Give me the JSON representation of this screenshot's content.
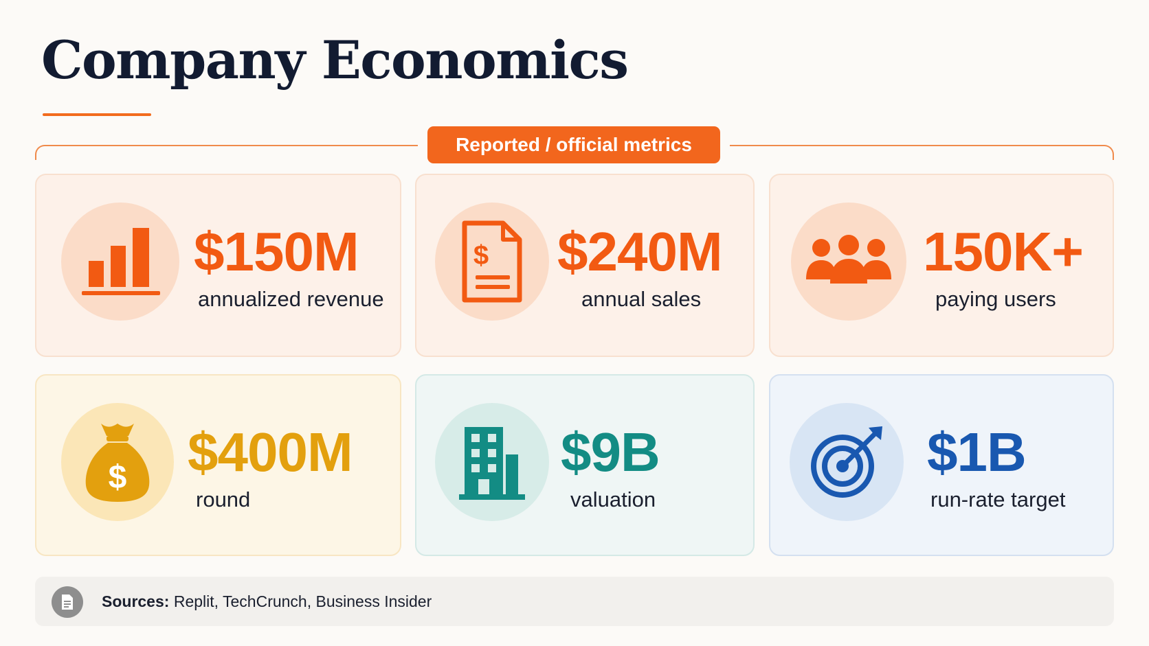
{
  "title": "Company Economics",
  "section_label": "Reported / official metrics",
  "metrics": [
    {
      "value": "$150M",
      "label": "annualized revenue",
      "icon": "bar-chart-icon",
      "color": "#f25a12"
    },
    {
      "value": "$240M",
      "label": "annual sales",
      "icon": "invoice-dollar-icon",
      "color": "#f25a12"
    },
    {
      "value": "150K+",
      "label": "paying users",
      "icon": "users-group-icon",
      "color": "#f25a12"
    },
    {
      "value": "$400M",
      "label": "round",
      "icon": "money-bag-icon",
      "color": "#e3a00e"
    },
    {
      "value": "$9B",
      "label": "valuation",
      "icon": "office-building-icon",
      "color": "#138c84"
    },
    {
      "value": "$1B",
      "label": "run-rate target",
      "icon": "target-arrow-icon",
      "color": "#1958b0"
    }
  ],
  "sources": {
    "label": "Sources:",
    "text": "Replit, TechCrunch, Business Insider",
    "icon": "document-icon"
  },
  "colors": {
    "accent": "#f2661d",
    "title": "#121b31"
  }
}
